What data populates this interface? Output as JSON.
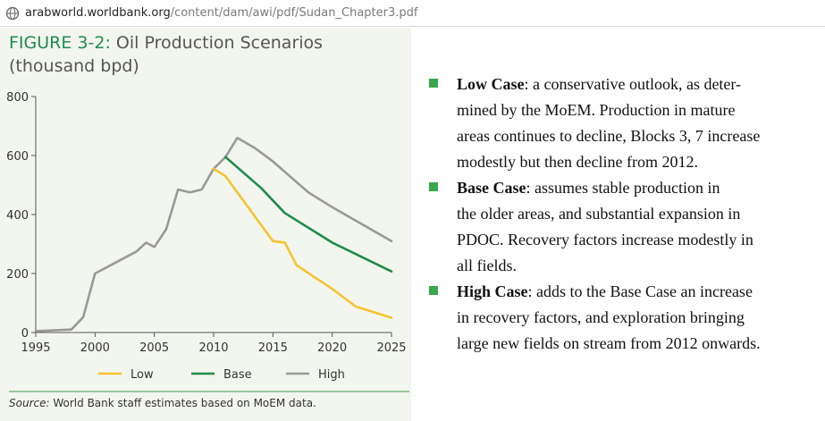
{
  "browser": {
    "url_host": "arabworld.worldbank.org",
    "url_path": "/content/dam/awi/pdf/Sudan_Chapter3.pdf"
  },
  "figure": {
    "label": "FIGURE 3-2:",
    "title": "Oil Production Scenarios",
    "subtitle": "(thousand bpd)",
    "source_lead": "Source:",
    "source_text": "World Bank staff estimates based on MoEM data."
  },
  "bullets": [
    {
      "head": "Low Case",
      "lines": [
        ": a conservative outlook, as deter-",
        "mined by the MoEM. Production in mature",
        "areas continues to decline, Blocks 3, 7 increase",
        "modestly but then decline from 2012."
      ]
    },
    {
      "head": "Base Case",
      "lines": [
        ": assumes stable production in",
        "the older areas, and substantial expansion in",
        "PDOC. Recovery factors increase modestly in",
        "all fields."
      ]
    },
    {
      "head": "High Case",
      "lines": [
        ": adds to the Base Case an increase",
        "in recovery factors, and exploration bringing",
        "large new fields on stream from 2012 onwards."
      ]
    }
  ],
  "colors": {
    "low": "#f4c331",
    "base": "#1f8c4c",
    "high": "#999999",
    "bullet": "#3aa64d"
  },
  "chart_data": {
    "type": "line",
    "xlim": [
      1995,
      2025
    ],
    "ylim": [
      0,
      800
    ],
    "x_ticks": [
      1995,
      2000,
      2005,
      2010,
      2015,
      2020,
      2025
    ],
    "y_ticks": [
      0,
      200,
      400,
      600,
      800
    ],
    "legend_position": "bottom",
    "series": [
      {
        "name": "High",
        "color_key": "high",
        "x": [
          1995,
          1998,
          1999,
          2000,
          2003.5,
          2004.3,
          2005,
          2006,
          2007,
          2008,
          2009,
          2010,
          2011,
          2012,
          2013.5,
          2015,
          2018,
          2020,
          2025
        ],
        "y": [
          5,
          10,
          52,
          200,
          275,
          305,
          290,
          350,
          485,
          475,
          485,
          555,
          595,
          660,
          625,
          580,
          475,
          425,
          310
        ]
      },
      {
        "name": "Base",
        "color_key": "base",
        "x": [
          2011,
          2014,
          2016,
          2020,
          2025
        ],
        "y": [
          595,
          490,
          405,
          305,
          207
        ]
      },
      {
        "name": "Low",
        "color_key": "low",
        "x": [
          2010,
          2011,
          2015,
          2016,
          2017,
          2020,
          2022,
          2025
        ],
        "y": [
          555,
          530,
          310,
          305,
          228,
          148,
          88,
          50
        ]
      }
    ]
  }
}
